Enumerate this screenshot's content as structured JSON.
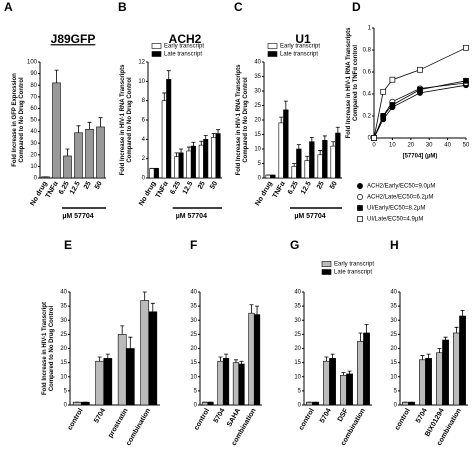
{
  "chart_data": [
    {
      "type": "bar",
      "panel": "A",
      "title": "J89GFP",
      "ylabel": [
        "Fold Increase in GFP Expression",
        "Compared to No Drug Control"
      ],
      "xlabel": "µM 57704",
      "categories": [
        "No drug",
        "TNFα",
        "6.25",
        "12.5",
        "25",
        "50"
      ],
      "values": [
        1,
        82,
        19,
        39,
        42,
        44
      ],
      "errors": [
        0,
        11,
        6,
        6,
        6,
        8
      ],
      "color": "#999999",
      "ylim": [
        0,
        100
      ],
      "yticks": [
        0,
        10,
        20,
        30,
        40,
        50,
        60,
        70,
        80,
        90,
        100
      ]
    },
    {
      "type": "bar",
      "panel": "B",
      "title": "ACH2",
      "ylabel": [
        "Fold Increase in HIV-1 RNA Transcripts",
        "Compared to No Drug Control"
      ],
      "xlabel": "µM 57704",
      "categories": [
        "No drug",
        "TNFα",
        "6.25",
        "12.5",
        "25",
        "50"
      ],
      "legend": "upper left",
      "series": [
        {
          "name": "Early transcript",
          "color": "#ffffff",
          "values": [
            1,
            8,
            2.2,
            2.8,
            3.4,
            4.2
          ],
          "errors": [
            0,
            0.8,
            0.4,
            0.4,
            0.4,
            0.4
          ]
        },
        {
          "name": "Late transcript",
          "color": "#000000",
          "values": [
            1,
            10.2,
            2.6,
            3.3,
            4,
            4.6
          ],
          "errors": [
            0,
            0.9,
            0.4,
            0.4,
            0.4,
            0.4
          ]
        }
      ],
      "ylim": [
        0,
        12
      ],
      "yticks": [
        0,
        2,
        4,
        6,
        8,
        10,
        12
      ]
    },
    {
      "type": "bar",
      "panel": "C",
      "title": "U1",
      "ylabel": [
        "Fold Increase in HIV-1 RNA Transcripts",
        "Compared to No Drug Control"
      ],
      "xlabel": "µM 57704",
      "categories": [
        "No drug",
        "TNFα",
        "6.25",
        "12.5",
        "25",
        "50"
      ],
      "legend": "upper left",
      "series": [
        {
          "name": "Early transcript",
          "color": "#ffffff",
          "values": [
            1,
            19,
            4,
            6,
            8,
            11
          ],
          "errors": [
            0,
            2,
            1,
            1.5,
            1.5,
            1.5
          ]
        },
        {
          "name": "Late transcript",
          "color": "#000000",
          "values": [
            1,
            23.5,
            10,
            12.5,
            13,
            15.5
          ],
          "errors": [
            0,
            3,
            1.5,
            1.5,
            1.5,
            2
          ]
        }
      ],
      "ylim": [
        0,
        40
      ],
      "yticks": [
        0,
        5,
        10,
        15,
        20,
        25,
        30,
        35,
        40
      ]
    },
    {
      "type": "scatter",
      "panel": "D",
      "ylabel": [
        "Fold Increase in HIV-1 RNA Transcripts",
        "Compared to TNFα control"
      ],
      "xlabel": "[57704] (µM)",
      "x": [
        0,
        5,
        10,
        25,
        50
      ],
      "legend": "below",
      "series": [
        {
          "name": "ACH2/Early/EC50=9.0µM",
          "marker": "circle",
          "color": "#000000",
          "values": [
            0,
            0.17,
            0.28,
            0.41,
            0.48
          ]
        },
        {
          "name": "ACH2/Late/EC50=6.2µM",
          "marker": "circle",
          "color": "#ffffff",
          "values": [
            0,
            0.2,
            0.33,
            0.45,
            0.5
          ]
        },
        {
          "name": "UI/Early/EC50=8.2µM",
          "marker": "square",
          "color": "#000000",
          "values": [
            0,
            0.2,
            0.3,
            0.44,
            0.52
          ]
        },
        {
          "name": "UI/Late/EC50=4.9µM",
          "marker": "square",
          "color": "#ffffff",
          "values": [
            0,
            0.42,
            0.53,
            0.62,
            0.82
          ]
        }
      ],
      "xlim": [
        0,
        50
      ],
      "xticks": [
        0,
        10,
        20,
        30,
        40,
        50
      ],
      "ylim": [
        0,
        1
      ],
      "yticks": [
        0,
        0.2,
        0.4,
        0.6,
        0.8,
        1
      ]
    },
    {
      "type": "bar",
      "panel": "E",
      "ylabel": [
        "Fold Increase in HIV-1 Transcript",
        "Compared to No Drug Control"
      ],
      "categories": [
        "control",
        "5704",
        "prostratin",
        "combination"
      ],
      "series": [
        {
          "name": "Early transcript",
          "color": "#bbbbbb",
          "values": [
            1,
            15.5,
            25,
            37
          ],
          "errors": [
            0,
            1.5,
            3,
            3
          ]
        },
        {
          "name": "Late transcript",
          "color": "#000000",
          "values": [
            1,
            16.5,
            20,
            33
          ],
          "errors": [
            0,
            1.5,
            4,
            3
          ]
        }
      ],
      "ylim": [
        0,
        40
      ],
      "yticks": [
        0,
        5,
        10,
        15,
        20,
        25,
        30,
        35,
        40
      ]
    },
    {
      "type": "bar",
      "panel": "F",
      "categories": [
        "control",
        "5704",
        "SAHA",
        "combination"
      ],
      "series": [
        {
          "name": "Early transcript",
          "color": "#bbbbbb",
          "values": [
            1,
            15.5,
            15,
            32.5
          ],
          "errors": [
            0,
            1.5,
            1,
            3
          ]
        },
        {
          "name": "Late transcript",
          "color": "#000000",
          "values": [
            1,
            16.5,
            14.5,
            32
          ],
          "errors": [
            0,
            1.5,
            1,
            3
          ]
        }
      ],
      "ylim": [
        0,
        40
      ],
      "yticks": [
        0,
        5,
        10,
        15,
        20,
        25,
        30,
        35,
        40
      ]
    },
    {
      "type": "bar",
      "panel": "G",
      "categories": [
        "control",
        "5704",
        "DSF",
        "combination"
      ],
      "legend": "upper left",
      "series": [
        {
          "name": "Early transcript",
          "color": "#bbbbbb",
          "values": [
            1,
            15.5,
            10.5,
            22.5
          ],
          "errors": [
            0,
            1.5,
            1,
            3
          ]
        },
        {
          "name": "Late transcript",
          "color": "#000000",
          "values": [
            1,
            16.5,
            11,
            25.5
          ],
          "errors": [
            0,
            1.5,
            1,
            3
          ]
        }
      ],
      "ylim": [
        0,
        40
      ],
      "yticks": [
        0,
        5,
        10,
        15,
        20,
        25,
        30,
        35,
        40
      ]
    },
    {
      "type": "bar",
      "panel": "H",
      "categories": [
        "control",
        "5704",
        "BIX01294",
        "combination"
      ],
      "series": [
        {
          "name": "Early transcript",
          "color": "#bbbbbb",
          "values": [
            1,
            16,
            18.5,
            25.5
          ],
          "errors": [
            0,
            1.5,
            1.5,
            2
          ]
        },
        {
          "name": "Late transcript",
          "color": "#000000",
          "values": [
            1,
            16.5,
            23,
            31.5
          ],
          "errors": [
            0,
            1.5,
            1,
            2
          ]
        }
      ],
      "ylim": [
        0,
        40
      ],
      "yticks": [
        0,
        5,
        10,
        15,
        20,
        25,
        30,
        35,
        40
      ]
    }
  ]
}
